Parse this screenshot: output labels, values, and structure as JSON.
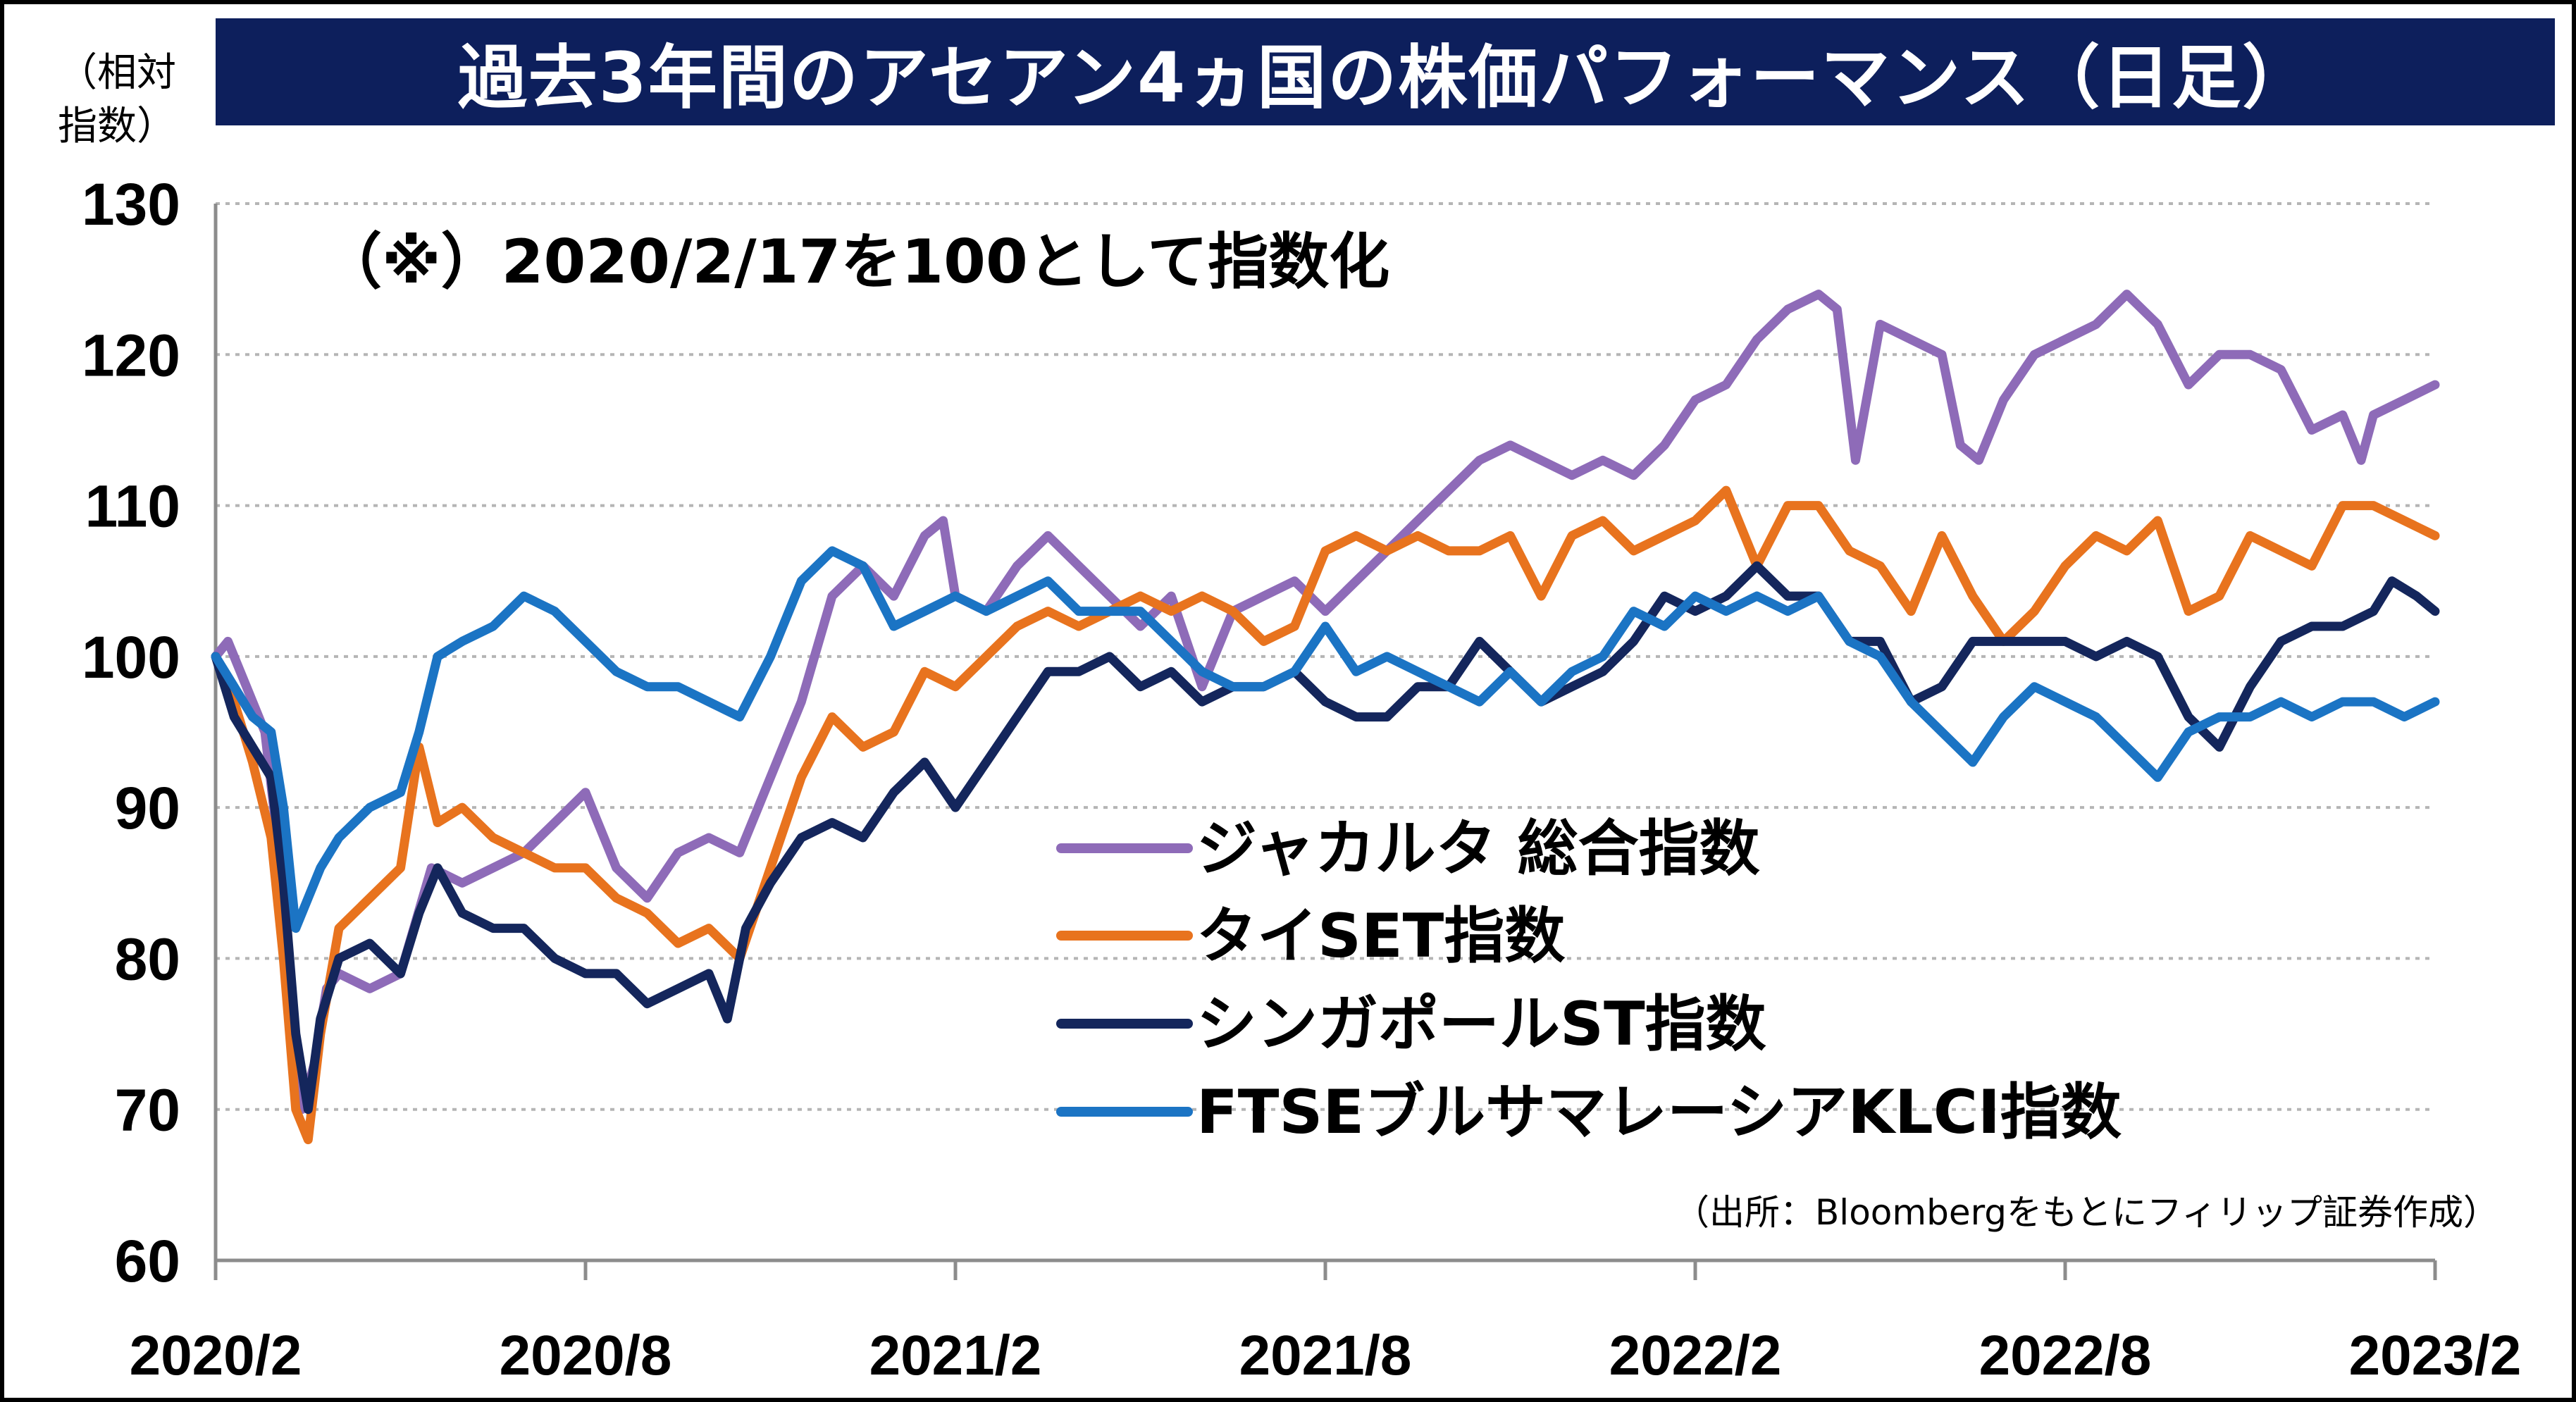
{
  "title": "過去3年間のアセアン4ヵ国の株価パフォーマンス（日足）",
  "y_unit": [
    "（相対",
    "指数）"
  ],
  "note": "（※）2020/2/17を100として指数化",
  "source": "（出所：Bloombergをもとにフィリップ証券作成）",
  "chart_data": {
    "type": "line",
    "xlabel": "",
    "ylabel": "（相対指数）",
    "ylim": [
      60,
      130
    ],
    "y_ticks": [
      60,
      70,
      80,
      90,
      100,
      110,
      120,
      130
    ],
    "x_ticks": [
      "2020/2",
      "2020/8",
      "2021/2",
      "2021/8",
      "2022/2",
      "2022/8",
      "2023/2"
    ],
    "x_range_months": [
      0,
      36
    ],
    "grid": "horizontal-dotted",
    "legend_position": "center-right",
    "series": [
      {
        "name": "ジャカルタ 総合指数",
        "color": "#8e6bb8",
        "points": [
          [
            0,
            100
          ],
          [
            0.2,
            101
          ],
          [
            0.5,
            98
          ],
          [
            0.8,
            95
          ],
          [
            1.0,
            88
          ],
          [
            1.2,
            78
          ],
          [
            1.4,
            70
          ],
          [
            1.6,
            73
          ],
          [
            1.8,
            78
          ],
          [
            2.0,
            79
          ],
          [
            2.5,
            78
          ],
          [
            3.0,
            79
          ],
          [
            3.5,
            86
          ],
          [
            4.0,
            85
          ],
          [
            4.5,
            86
          ],
          [
            5.0,
            87
          ],
          [
            5.5,
            89
          ],
          [
            6.0,
            91
          ],
          [
            6.5,
            86
          ],
          [
            7.0,
            84
          ],
          [
            7.5,
            87
          ],
          [
            8.0,
            88
          ],
          [
            8.5,
            87
          ],
          [
            9.0,
            92
          ],
          [
            9.5,
            97
          ],
          [
            10.0,
            104
          ],
          [
            10.5,
            106
          ],
          [
            11.0,
            104
          ],
          [
            11.5,
            108
          ],
          [
            11.8,
            109
          ],
          [
            12.0,
            104
          ],
          [
            12.5,
            103
          ],
          [
            13.0,
            106
          ],
          [
            13.5,
            108
          ],
          [
            14.0,
            106
          ],
          [
            14.5,
            104
          ],
          [
            15.0,
            102
          ],
          [
            15.5,
            104
          ],
          [
            16.0,
            98
          ],
          [
            16.5,
            103
          ],
          [
            17.0,
            104
          ],
          [
            17.5,
            105
          ],
          [
            18.0,
            103
          ],
          [
            18.5,
            105
          ],
          [
            19.0,
            107
          ],
          [
            19.5,
            109
          ],
          [
            20.0,
            111
          ],
          [
            20.5,
            113
          ],
          [
            21.0,
            114
          ],
          [
            21.5,
            113
          ],
          [
            22.0,
            112
          ],
          [
            22.5,
            113
          ],
          [
            23.0,
            112
          ],
          [
            23.5,
            114
          ],
          [
            24.0,
            117
          ],
          [
            24.5,
            118
          ],
          [
            25.0,
            121
          ],
          [
            25.5,
            123
          ],
          [
            26.0,
            124
          ],
          [
            26.3,
            123
          ],
          [
            26.6,
            113
          ],
          [
            27.0,
            122
          ],
          [
            27.5,
            121
          ],
          [
            28.0,
            120
          ],
          [
            28.3,
            114
          ],
          [
            28.6,
            113
          ],
          [
            29.0,
            117
          ],
          [
            29.5,
            120
          ],
          [
            30.0,
            121
          ],
          [
            30.5,
            122
          ],
          [
            31.0,
            124
          ],
          [
            31.5,
            122
          ],
          [
            32.0,
            118
          ],
          [
            32.5,
            120
          ],
          [
            33.0,
            120
          ],
          [
            33.5,
            119
          ],
          [
            34.0,
            115
          ],
          [
            34.5,
            116
          ],
          [
            34.8,
            113
          ],
          [
            35.0,
            116
          ],
          [
            35.5,
            117
          ],
          [
            36.0,
            118
          ]
        ]
      },
      {
        "name": "タイSET指数",
        "color": "#e8731e",
        "points": [
          [
            0,
            100
          ],
          [
            0.3,
            97
          ],
          [
            0.6,
            93
          ],
          [
            0.9,
            88
          ],
          [
            1.1,
            80
          ],
          [
            1.3,
            70
          ],
          [
            1.5,
            68
          ],
          [
            1.7,
            75
          ],
          [
            2.0,
            82
          ],
          [
            2.5,
            84
          ],
          [
            3.0,
            86
          ],
          [
            3.3,
            94
          ],
          [
            3.6,
            89
          ],
          [
            4.0,
            90
          ],
          [
            4.5,
            88
          ],
          [
            5.0,
            87
          ],
          [
            5.5,
            86
          ],
          [
            6.0,
            86
          ],
          [
            6.5,
            84
          ],
          [
            7.0,
            83
          ],
          [
            7.5,
            81
          ],
          [
            8.0,
            82
          ],
          [
            8.5,
            80
          ],
          [
            9.0,
            86
          ],
          [
            9.5,
            92
          ],
          [
            10.0,
            96
          ],
          [
            10.5,
            94
          ],
          [
            11.0,
            95
          ],
          [
            11.5,
            99
          ],
          [
            12.0,
            98
          ],
          [
            12.5,
            100
          ],
          [
            13.0,
            102
          ],
          [
            13.5,
            103
          ],
          [
            14.0,
            102
          ],
          [
            14.5,
            103
          ],
          [
            15.0,
            104
          ],
          [
            15.5,
            103
          ],
          [
            16.0,
            104
          ],
          [
            16.5,
            103
          ],
          [
            17.0,
            101
          ],
          [
            17.5,
            102
          ],
          [
            18.0,
            107
          ],
          [
            18.5,
            108
          ],
          [
            19.0,
            107
          ],
          [
            19.5,
            108
          ],
          [
            20.0,
            107
          ],
          [
            20.5,
            107
          ],
          [
            21.0,
            108
          ],
          [
            21.5,
            104
          ],
          [
            22.0,
            108
          ],
          [
            22.5,
            109
          ],
          [
            23.0,
            107
          ],
          [
            23.5,
            108
          ],
          [
            24.0,
            109
          ],
          [
            24.5,
            111
          ],
          [
            25.0,
            106
          ],
          [
            25.5,
            110
          ],
          [
            26.0,
            110
          ],
          [
            26.5,
            107
          ],
          [
            27.0,
            106
          ],
          [
            27.5,
            103
          ],
          [
            28.0,
            108
          ],
          [
            28.5,
            104
          ],
          [
            29.0,
            101
          ],
          [
            29.5,
            103
          ],
          [
            30.0,
            106
          ],
          [
            30.5,
            108
          ],
          [
            31.0,
            107
          ],
          [
            31.5,
            109
          ],
          [
            32.0,
            103
          ],
          [
            32.5,
            104
          ],
          [
            33.0,
            108
          ],
          [
            33.5,
            107
          ],
          [
            34.0,
            106
          ],
          [
            34.5,
            110
          ],
          [
            35.0,
            110
          ],
          [
            35.5,
            109
          ],
          [
            36.0,
            108
          ]
        ]
      },
      {
        "name": "シンガポールST指数",
        "color": "#14265c",
        "points": [
          [
            0,
            100
          ],
          [
            0.3,
            96
          ],
          [
            0.6,
            94
          ],
          [
            0.9,
            92
          ],
          [
            1.1,
            85
          ],
          [
            1.3,
            75
          ],
          [
            1.5,
            70
          ],
          [
            1.7,
            76
          ],
          [
            2.0,
            80
          ],
          [
            2.5,
            81
          ],
          [
            3.0,
            79
          ],
          [
            3.3,
            83
          ],
          [
            3.6,
            86
          ],
          [
            4.0,
            83
          ],
          [
            4.5,
            82
          ],
          [
            5.0,
            82
          ],
          [
            5.5,
            80
          ],
          [
            6.0,
            79
          ],
          [
            6.5,
            79
          ],
          [
            7.0,
            77
          ],
          [
            7.5,
            78
          ],
          [
            8.0,
            79
          ],
          [
            8.3,
            76
          ],
          [
            8.6,
            82
          ],
          [
            9.0,
            85
          ],
          [
            9.5,
            88
          ],
          [
            10.0,
            89
          ],
          [
            10.5,
            88
          ],
          [
            11.0,
            91
          ],
          [
            11.5,
            93
          ],
          [
            12.0,
            90
          ],
          [
            12.5,
            93
          ],
          [
            13.0,
            96
          ],
          [
            13.5,
            99
          ],
          [
            14.0,
            99
          ],
          [
            14.5,
            100
          ],
          [
            15.0,
            98
          ],
          [
            15.5,
            99
          ],
          [
            16.0,
            97
          ],
          [
            16.5,
            98
          ],
          [
            17.0,
            98
          ],
          [
            17.5,
            99
          ],
          [
            18.0,
            97
          ],
          [
            18.5,
            96
          ],
          [
            19.0,
            96
          ],
          [
            19.5,
            98
          ],
          [
            20.0,
            98
          ],
          [
            20.5,
            101
          ],
          [
            21.0,
            99
          ],
          [
            21.5,
            97
          ],
          [
            22.0,
            98
          ],
          [
            22.5,
            99
          ],
          [
            23.0,
            101
          ],
          [
            23.5,
            104
          ],
          [
            24.0,
            103
          ],
          [
            24.5,
            104
          ],
          [
            25.0,
            106
          ],
          [
            25.5,
            104
          ],
          [
            26.0,
            104
          ],
          [
            26.5,
            101
          ],
          [
            27.0,
            101
          ],
          [
            27.5,
            97
          ],
          [
            28.0,
            98
          ],
          [
            28.5,
            101
          ],
          [
            29.0,
            101
          ],
          [
            29.5,
            101
          ],
          [
            30.0,
            101
          ],
          [
            30.5,
            100
          ],
          [
            31.0,
            101
          ],
          [
            31.5,
            100
          ],
          [
            32.0,
            96
          ],
          [
            32.5,
            94
          ],
          [
            33.0,
            98
          ],
          [
            33.5,
            101
          ],
          [
            34.0,
            102
          ],
          [
            34.5,
            102
          ],
          [
            35.0,
            103
          ],
          [
            35.3,
            105
          ],
          [
            35.7,
            104
          ],
          [
            36.0,
            103
          ]
        ]
      },
      {
        "name": "FTSEブルサマレーシアKLCI指数",
        "color": "#1b74c4",
        "points": [
          [
            0,
            100
          ],
          [
            0.3,
            98
          ],
          [
            0.6,
            96
          ],
          [
            0.9,
            95
          ],
          [
            1.1,
            90
          ],
          [
            1.3,
            82
          ],
          [
            1.5,
            84
          ],
          [
            1.7,
            86
          ],
          [
            2.0,
            88
          ],
          [
            2.5,
            90
          ],
          [
            3.0,
            91
          ],
          [
            3.3,
            95
          ],
          [
            3.6,
            100
          ],
          [
            4.0,
            101
          ],
          [
            4.5,
            102
          ],
          [
            5.0,
            104
          ],
          [
            5.5,
            103
          ],
          [
            6.0,
            101
          ],
          [
            6.5,
            99
          ],
          [
            7.0,
            98
          ],
          [
            7.5,
            98
          ],
          [
            8.0,
            97
          ],
          [
            8.5,
            96
          ],
          [
            9.0,
            100
          ],
          [
            9.5,
            105
          ],
          [
            10.0,
            107
          ],
          [
            10.5,
            106
          ],
          [
            11.0,
            102
          ],
          [
            11.5,
            103
          ],
          [
            12.0,
            104
          ],
          [
            12.5,
            103
          ],
          [
            13.0,
            104
          ],
          [
            13.5,
            105
          ],
          [
            14.0,
            103
          ],
          [
            14.5,
            103
          ],
          [
            15.0,
            103
          ],
          [
            15.5,
            101
          ],
          [
            16.0,
            99
          ],
          [
            16.5,
            98
          ],
          [
            17.0,
            98
          ],
          [
            17.5,
            99
          ],
          [
            18.0,
            102
          ],
          [
            18.5,
            99
          ],
          [
            19.0,
            100
          ],
          [
            19.5,
            99
          ],
          [
            20.0,
            98
          ],
          [
            20.5,
            97
          ],
          [
            21.0,
            99
          ],
          [
            21.5,
            97
          ],
          [
            22.0,
            99
          ],
          [
            22.5,
            100
          ],
          [
            23.0,
            103
          ],
          [
            23.5,
            102
          ],
          [
            24.0,
            104
          ],
          [
            24.5,
            103
          ],
          [
            25.0,
            104
          ],
          [
            25.5,
            103
          ],
          [
            26.0,
            104
          ],
          [
            26.5,
            101
          ],
          [
            27.0,
            100
          ],
          [
            27.5,
            97
          ],
          [
            28.0,
            95
          ],
          [
            28.5,
            93
          ],
          [
            29.0,
            96
          ],
          [
            29.5,
            98
          ],
          [
            30.0,
            97
          ],
          [
            30.5,
            96
          ],
          [
            31.0,
            94
          ],
          [
            31.5,
            92
          ],
          [
            32.0,
            95
          ],
          [
            32.5,
            96
          ],
          [
            33.0,
            96
          ],
          [
            33.5,
            97
          ],
          [
            34.0,
            96
          ],
          [
            34.5,
            97
          ],
          [
            35.0,
            97
          ],
          [
            35.5,
            96
          ],
          [
            36.0,
            97
          ]
        ]
      }
    ]
  }
}
